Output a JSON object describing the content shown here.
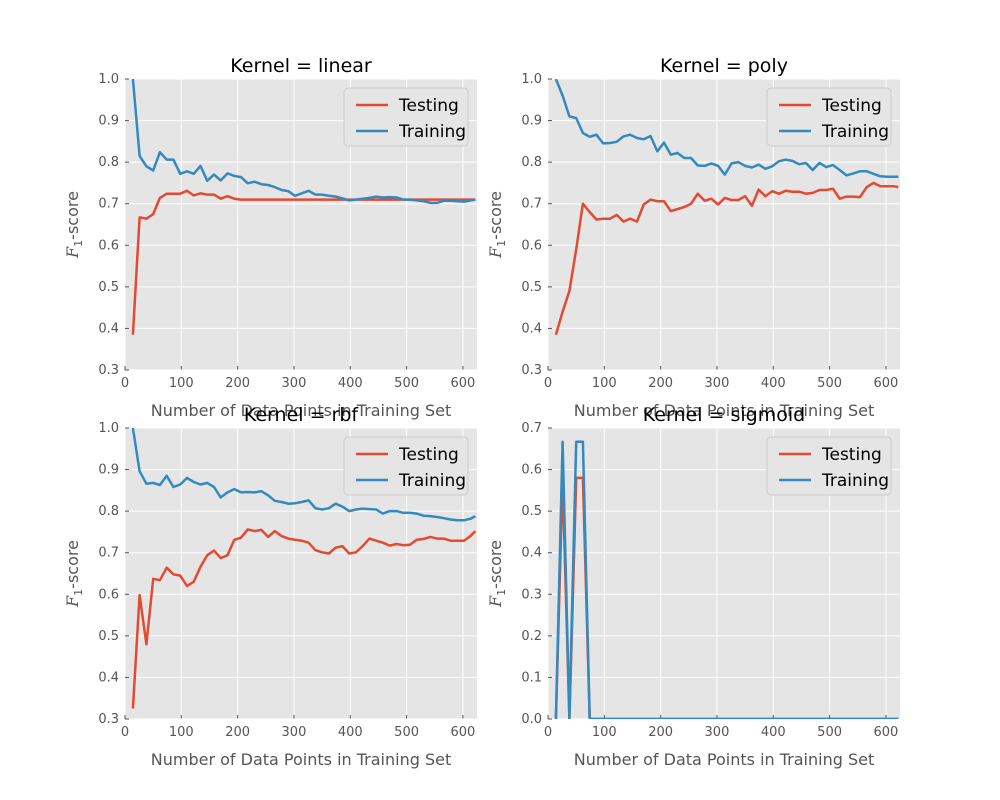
{
  "figure": {
    "background": "#ffffff"
  },
  "chart_data": [
    {
      "type": "line",
      "title": "Kernel = linear",
      "xlabel": "Number of Data Points in Training Set",
      "ylabel_main": "F",
      "ylabel_sub": "1",
      "ylabel_suffix": "-score",
      "xlim": [
        0,
        625
      ],
      "ylim": [
        0.3,
        1.0
      ],
      "xticks": [
        0,
        100,
        200,
        300,
        400,
        500,
        600
      ],
      "yticks": [
        0.3,
        0.4,
        0.5,
        0.6,
        0.7,
        0.8,
        0.9,
        1.0
      ],
      "ytick_labels": [
        "0.3",
        "0.4",
        "0.5",
        "0.6",
        "0.7",
        "0.8",
        "0.9",
        "1.0"
      ],
      "grid": true,
      "legend": "top-right",
      "x": [
        14,
        26,
        38,
        50,
        62,
        74,
        86,
        98,
        110,
        122,
        134,
        146,
        158,
        170,
        182,
        194,
        206,
        218,
        230,
        242,
        254,
        266,
        278,
        290,
        302,
        314,
        326,
        338,
        350,
        362,
        374,
        386,
        398,
        410,
        422,
        434,
        446,
        458,
        470,
        482,
        494,
        506,
        518,
        530,
        542,
        554,
        566,
        578,
        590,
        602,
        614,
        622
      ],
      "series": [
        {
          "name": "Testing",
          "color": "#e24a33",
          "values": [
            0.385,
            0.667,
            0.664,
            0.675,
            0.714,
            0.724,
            0.724,
            0.724,
            0.731,
            0.72,
            0.725,
            0.722,
            0.722,
            0.712,
            0.718,
            0.712,
            0.71,
            0.71,
            0.71,
            0.71,
            0.71,
            0.71,
            0.71,
            0.71,
            0.71,
            0.71,
            0.71,
            0.71,
            0.71,
            0.71,
            0.71,
            0.71,
            0.71,
            0.71,
            0.71,
            0.71,
            0.71,
            0.71,
            0.71,
            0.71,
            0.71,
            0.71,
            0.71,
            0.71,
            0.71,
            0.71,
            0.71,
            0.71,
            0.71,
            0.71,
            0.71,
            0.71
          ]
        },
        {
          "name": "Training",
          "color": "#348abd",
          "values": [
            1.0,
            0.815,
            0.79,
            0.78,
            0.824,
            0.806,
            0.806,
            0.772,
            0.778,
            0.772,
            0.791,
            0.755,
            0.77,
            0.756,
            0.773,
            0.767,
            0.764,
            0.749,
            0.753,
            0.747,
            0.745,
            0.74,
            0.733,
            0.73,
            0.719,
            0.725,
            0.731,
            0.722,
            0.722,
            0.719,
            0.717,
            0.713,
            0.708,
            0.71,
            0.712,
            0.714,
            0.717,
            0.715,
            0.716,
            0.715,
            0.71,
            0.71,
            0.708,
            0.706,
            0.702,
            0.702,
            0.707,
            0.707,
            0.706,
            0.705,
            0.708,
            0.71
          ]
        }
      ]
    },
    {
      "type": "line",
      "title": "Kernel = poly",
      "xlabel": "Number of Data Points in Training Set",
      "ylabel_main": "F",
      "ylabel_sub": "1",
      "ylabel_suffix": "-score",
      "xlim": [
        0,
        625
      ],
      "ylim": [
        0.3,
        1.0
      ],
      "xticks": [
        0,
        100,
        200,
        300,
        400,
        500,
        600
      ],
      "yticks": [
        0.3,
        0.4,
        0.5,
        0.6,
        0.7,
        0.8,
        0.9,
        1.0
      ],
      "ytick_labels": [
        "0.3",
        "0.4",
        "0.5",
        "0.6",
        "0.7",
        "0.8",
        "0.9",
        "1.0"
      ],
      "grid": true,
      "legend": "top-right",
      "x": [
        14,
        26,
        38,
        50,
        62,
        74,
        86,
        98,
        110,
        122,
        134,
        146,
        158,
        170,
        182,
        194,
        206,
        218,
        230,
        242,
        254,
        266,
        278,
        290,
        302,
        314,
        326,
        338,
        350,
        362,
        374,
        386,
        398,
        410,
        422,
        434,
        446,
        458,
        470,
        482,
        494,
        506,
        518,
        530,
        542,
        554,
        566,
        578,
        590,
        602,
        614,
        622
      ],
      "series": [
        {
          "name": "Testing",
          "color": "#e24a33",
          "values": [
            0.385,
            0.44,
            0.49,
            0.59,
            0.7,
            0.68,
            0.662,
            0.664,
            0.664,
            0.673,
            0.657,
            0.664,
            0.657,
            0.698,
            0.71,
            0.706,
            0.706,
            0.682,
            0.687,
            0.692,
            0.7,
            0.724,
            0.707,
            0.712,
            0.698,
            0.714,
            0.709,
            0.709,
            0.718,
            0.695,
            0.734,
            0.718,
            0.73,
            0.724,
            0.731,
            0.729,
            0.729,
            0.724,
            0.726,
            0.733,
            0.733,
            0.736,
            0.712,
            0.717,
            0.717,
            0.716,
            0.74,
            0.75,
            0.742,
            0.742,
            0.742,
            0.74
          ]
        },
        {
          "name": "Training",
          "color": "#348abd",
          "values": [
            1.0,
            0.96,
            0.91,
            0.906,
            0.87,
            0.861,
            0.866,
            0.845,
            0.846,
            0.849,
            0.862,
            0.866,
            0.858,
            0.855,
            0.863,
            0.826,
            0.847,
            0.818,
            0.822,
            0.81,
            0.81,
            0.792,
            0.791,
            0.797,
            0.791,
            0.77,
            0.797,
            0.8,
            0.791,
            0.787,
            0.794,
            0.784,
            0.79,
            0.802,
            0.806,
            0.803,
            0.795,
            0.798,
            0.781,
            0.798,
            0.788,
            0.793,
            0.781,
            0.768,
            0.773,
            0.778,
            0.778,
            0.772,
            0.766,
            0.765,
            0.765,
            0.765
          ]
        }
      ]
    },
    {
      "type": "line",
      "title": "Kernel = rbf",
      "xlabel": "Number of Data Points in Training Set",
      "ylabel_main": "F",
      "ylabel_sub": "1",
      "ylabel_suffix": "-score",
      "xlim": [
        0,
        625
      ],
      "ylim": [
        0.3,
        1.0
      ],
      "xticks": [
        0,
        100,
        200,
        300,
        400,
        500,
        600
      ],
      "yticks": [
        0.3,
        0.4,
        0.5,
        0.6,
        0.7,
        0.8,
        0.9,
        1.0
      ],
      "ytick_labels": [
        "0.3",
        "0.4",
        "0.5",
        "0.6",
        "0.7",
        "0.8",
        "0.9",
        "1.0"
      ],
      "grid": true,
      "legend": "top-right",
      "x": [
        14,
        26,
        38,
        50,
        62,
        74,
        86,
        98,
        110,
        122,
        134,
        146,
        158,
        170,
        182,
        194,
        206,
        218,
        230,
        242,
        254,
        266,
        278,
        290,
        302,
        314,
        326,
        338,
        350,
        362,
        374,
        386,
        398,
        410,
        422,
        434,
        446,
        458,
        470,
        482,
        494,
        506,
        518,
        530,
        542,
        554,
        566,
        578,
        590,
        602,
        614,
        622
      ],
      "series": [
        {
          "name": "Testing",
          "color": "#e24a33",
          "values": [
            0.325,
            0.598,
            0.48,
            0.637,
            0.634,
            0.664,
            0.648,
            0.645,
            0.62,
            0.63,
            0.666,
            0.694,
            0.705,
            0.687,
            0.694,
            0.731,
            0.736,
            0.756,
            0.752,
            0.755,
            0.738,
            0.752,
            0.74,
            0.734,
            0.731,
            0.729,
            0.724,
            0.706,
            0.701,
            0.698,
            0.712,
            0.716,
            0.698,
            0.701,
            0.716,
            0.734,
            0.729,
            0.724,
            0.717,
            0.721,
            0.718,
            0.719,
            0.731,
            0.733,
            0.738,
            0.734,
            0.734,
            0.729,
            0.729,
            0.729,
            0.741,
            0.752
          ]
        },
        {
          "name": "Training",
          "color": "#348abd",
          "values": [
            1.0,
            0.896,
            0.866,
            0.868,
            0.863,
            0.885,
            0.858,
            0.864,
            0.88,
            0.87,
            0.864,
            0.868,
            0.858,
            0.833,
            0.845,
            0.853,
            0.845,
            0.846,
            0.845,
            0.848,
            0.838,
            0.825,
            0.822,
            0.818,
            0.819,
            0.822,
            0.826,
            0.807,
            0.804,
            0.807,
            0.818,
            0.811,
            0.8,
            0.804,
            0.806,
            0.805,
            0.804,
            0.794,
            0.8,
            0.8,
            0.796,
            0.796,
            0.794,
            0.789,
            0.788,
            0.786,
            0.783,
            0.78,
            0.778,
            0.778,
            0.782,
            0.788
          ]
        }
      ]
    },
    {
      "type": "line",
      "title": "Kernel = sigmoid",
      "xlabel": "Number of Data Points in Training Set",
      "ylabel_main": "F",
      "ylabel_sub": "1",
      "ylabel_suffix": "-score",
      "xlim": [
        0,
        625
      ],
      "ylim": [
        0.0,
        0.7
      ],
      "xticks": [
        0,
        100,
        200,
        300,
        400,
        500,
        600
      ],
      "yticks": [
        0.0,
        0.1,
        0.2,
        0.3,
        0.4,
        0.5,
        0.6,
        0.7
      ],
      "ytick_labels": [
        "0.0",
        "0.1",
        "0.2",
        "0.3",
        "0.4",
        "0.5",
        "0.6",
        "0.7"
      ],
      "grid": true,
      "legend": "top-right",
      "x": [
        14,
        26,
        38,
        50,
        62,
        74,
        86,
        98,
        110,
        122,
        134,
        146,
        158,
        170,
        182,
        194,
        206,
        218,
        230,
        242,
        254,
        266,
        278,
        290,
        302,
        314,
        326,
        338,
        350,
        362,
        374,
        386,
        398,
        410,
        422,
        434,
        446,
        458,
        470,
        482,
        494,
        506,
        518,
        530,
        542,
        554,
        566,
        578,
        590,
        602,
        614,
        622
      ],
      "series": [
        {
          "name": "Testing",
          "color": "#e24a33",
          "values": [
            0.0,
            0.58,
            0.0,
            0.58,
            0.58,
            0.0,
            0.0,
            0.0,
            0.0,
            0.0,
            0.0,
            0.0,
            0.0,
            0.0,
            0.0,
            0.0,
            0.0,
            0.0,
            0.0,
            0.0,
            0.0,
            0.0,
            0.0,
            0.0,
            0.0,
            0.0,
            0.0,
            0.0,
            0.0,
            0.0,
            0.0,
            0.0,
            0.0,
            0.0,
            0.0,
            0.0,
            0.0,
            0.0,
            0.0,
            0.0,
            0.0,
            0.0,
            0.0,
            0.0,
            0.0,
            0.0,
            0.0,
            0.0,
            0.0,
            0.0,
            0.0,
            0.0
          ]
        },
        {
          "name": "Training",
          "color": "#348abd",
          "values": [
            0.0,
            0.667,
            0.0,
            0.667,
            0.667,
            0.0,
            0.0,
            0.0,
            0.0,
            0.0,
            0.0,
            0.0,
            0.0,
            0.0,
            0.0,
            0.0,
            0.0,
            0.0,
            0.0,
            0.0,
            0.0,
            0.0,
            0.0,
            0.0,
            0.0,
            0.0,
            0.0,
            0.0,
            0.0,
            0.0,
            0.0,
            0.0,
            0.0,
            0.0,
            0.0,
            0.0,
            0.0,
            0.0,
            0.0,
            0.0,
            0.0,
            0.0,
            0.0,
            0.0,
            0.0,
            0.0,
            0.0,
            0.0,
            0.0,
            0.0,
            0.0,
            0.0
          ]
        }
      ]
    }
  ]
}
